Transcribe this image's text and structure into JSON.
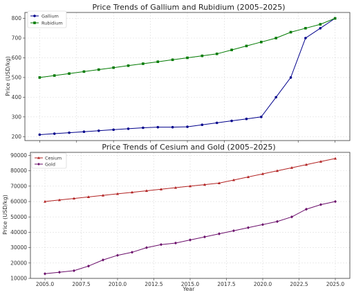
{
  "chart_data": [
    {
      "type": "line",
      "title": "Price Trends of Gallium and Rubidium (2005–2025)",
      "xlabel": "",
      "ylabel": "Price (USD/kg)",
      "x": [
        2005,
        2006,
        2007,
        2008,
        2009,
        2010,
        2011,
        2012,
        2013,
        2014,
        2015,
        2016,
        2017,
        2018,
        2019,
        2020,
        2021,
        2022,
        2023,
        2024,
        2025
      ],
      "xlim": [
        2004,
        2026
      ],
      "ylim": [
        180,
        830
      ],
      "yticks": [
        200,
        300,
        400,
        500,
        600,
        700,
        800
      ],
      "yticklabels": [
        "200",
        "300",
        "400",
        "500",
        "600",
        "700",
        "800"
      ],
      "grid": true,
      "legend_position": "upper-left",
      "series": [
        {
          "name": "Gallium",
          "color": "#00008b",
          "marker": "circle",
          "values": [
            210,
            215,
            220,
            225,
            230,
            235,
            240,
            245,
            248,
            248,
            250,
            260,
            270,
            280,
            290,
            300,
            400,
            500,
            700,
            750,
            800
          ]
        },
        {
          "name": "Rubidium",
          "color": "#007a00",
          "marker": "square",
          "values": [
            500,
            510,
            520,
            530,
            540,
            550,
            560,
            570,
            580,
            590,
            600,
            610,
            620,
            640,
            660,
            680,
            700,
            730,
            750,
            770,
            800
          ]
        }
      ]
    },
    {
      "type": "line",
      "title": "Price Trends of Cesium and Gold (2005–2025)",
      "xlabel": "Year",
      "ylabel": "Price (USD/kg)",
      "x": [
        2005,
        2006,
        2007,
        2008,
        2009,
        2010,
        2011,
        2012,
        2013,
        2014,
        2015,
        2016,
        2017,
        2018,
        2019,
        2020,
        2021,
        2022,
        2023,
        2024,
        2025
      ],
      "xlim": [
        2004,
        2026
      ],
      "ylim": [
        10000,
        92000
      ],
      "xticks": [
        2005,
        2007.5,
        2010,
        2012.5,
        2015,
        2017.5,
        2020,
        2022.5,
        2025
      ],
      "xticklabels": [
        "2005.0",
        "2007.5",
        "2010.0",
        "2012.5",
        "2015.0",
        "2017.5",
        "2020.0",
        "2022.5",
        "2025.0"
      ],
      "yticks": [
        10000,
        20000,
        30000,
        40000,
        50000,
        60000,
        70000,
        80000,
        90000
      ],
      "yticklabels": [
        "10000",
        "20000",
        "30000",
        "40000",
        "50000",
        "60000",
        "70000",
        "80000",
        "90000"
      ],
      "grid": true,
      "legend_position": "upper-left",
      "series": [
        {
          "name": "Cesium",
          "color": "#b22222",
          "marker": "triangle",
          "values": [
            60000,
            61000,
            62000,
            63000,
            64000,
            65000,
            66000,
            67000,
            68000,
            69000,
            70000,
            71000,
            72000,
            74000,
            76000,
            78000,
            80000,
            82000,
            84000,
            86000,
            88000
          ]
        },
        {
          "name": "Gold",
          "color": "#6a0d6a",
          "marker": "diamond",
          "values": [
            13000,
            14000,
            15000,
            18000,
            22000,
            25000,
            27000,
            30000,
            32000,
            33000,
            35000,
            37000,
            39000,
            41000,
            43000,
            45000,
            47000,
            50000,
            55000,
            58000,
            60000
          ]
        }
      ]
    }
  ]
}
